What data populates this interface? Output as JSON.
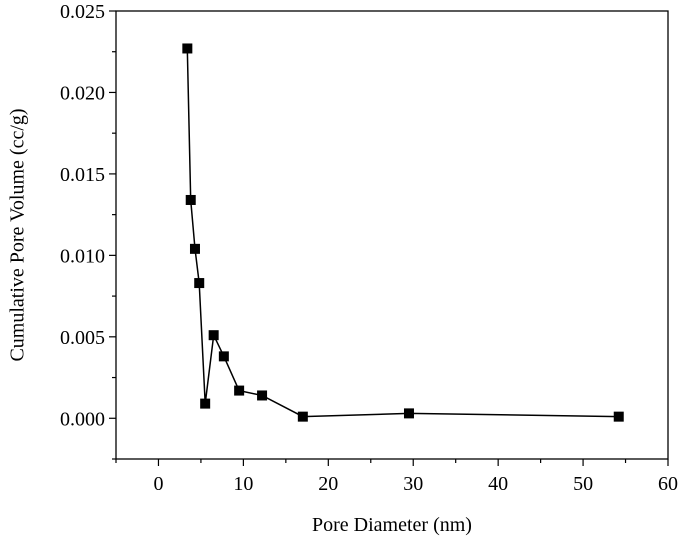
{
  "chart_data": {
    "type": "line",
    "title": "",
    "xlabel": "Pore Diameter (nm)",
    "ylabel": "Cumulative Pore Volume (cc/g)",
    "xlim": [
      -5,
      60
    ],
    "ylim": [
      -0.0025,
      0.025
    ],
    "xticks": [
      0,
      10,
      20,
      30,
      40,
      50,
      60
    ],
    "yticks": [
      0.0,
      0.005,
      0.01,
      0.015,
      0.02,
      0.025
    ],
    "xtick_labels": [
      "0",
      "10",
      "20",
      "30",
      "40",
      "50",
      "60"
    ],
    "ytick_labels": [
      "0.000",
      "0.005",
      "0.010",
      "0.015",
      "0.020",
      "0.025"
    ],
    "grid": false,
    "legend": "none",
    "color": "#000000",
    "marker": "square",
    "series": [
      {
        "x": [
          3.4,
          3.8,
          4.3,
          4.8,
          5.5,
          6.5,
          7.7,
          9.5,
          12.2,
          17.0,
          29.5,
          54.2
        ],
        "y": [
          0.0227,
          0.0134,
          0.0104,
          0.0083,
          0.0009,
          0.0051,
          0.0038,
          0.0017,
          0.0014,
          0.0001,
          0.0003,
          0.0001
        ]
      }
    ]
  }
}
